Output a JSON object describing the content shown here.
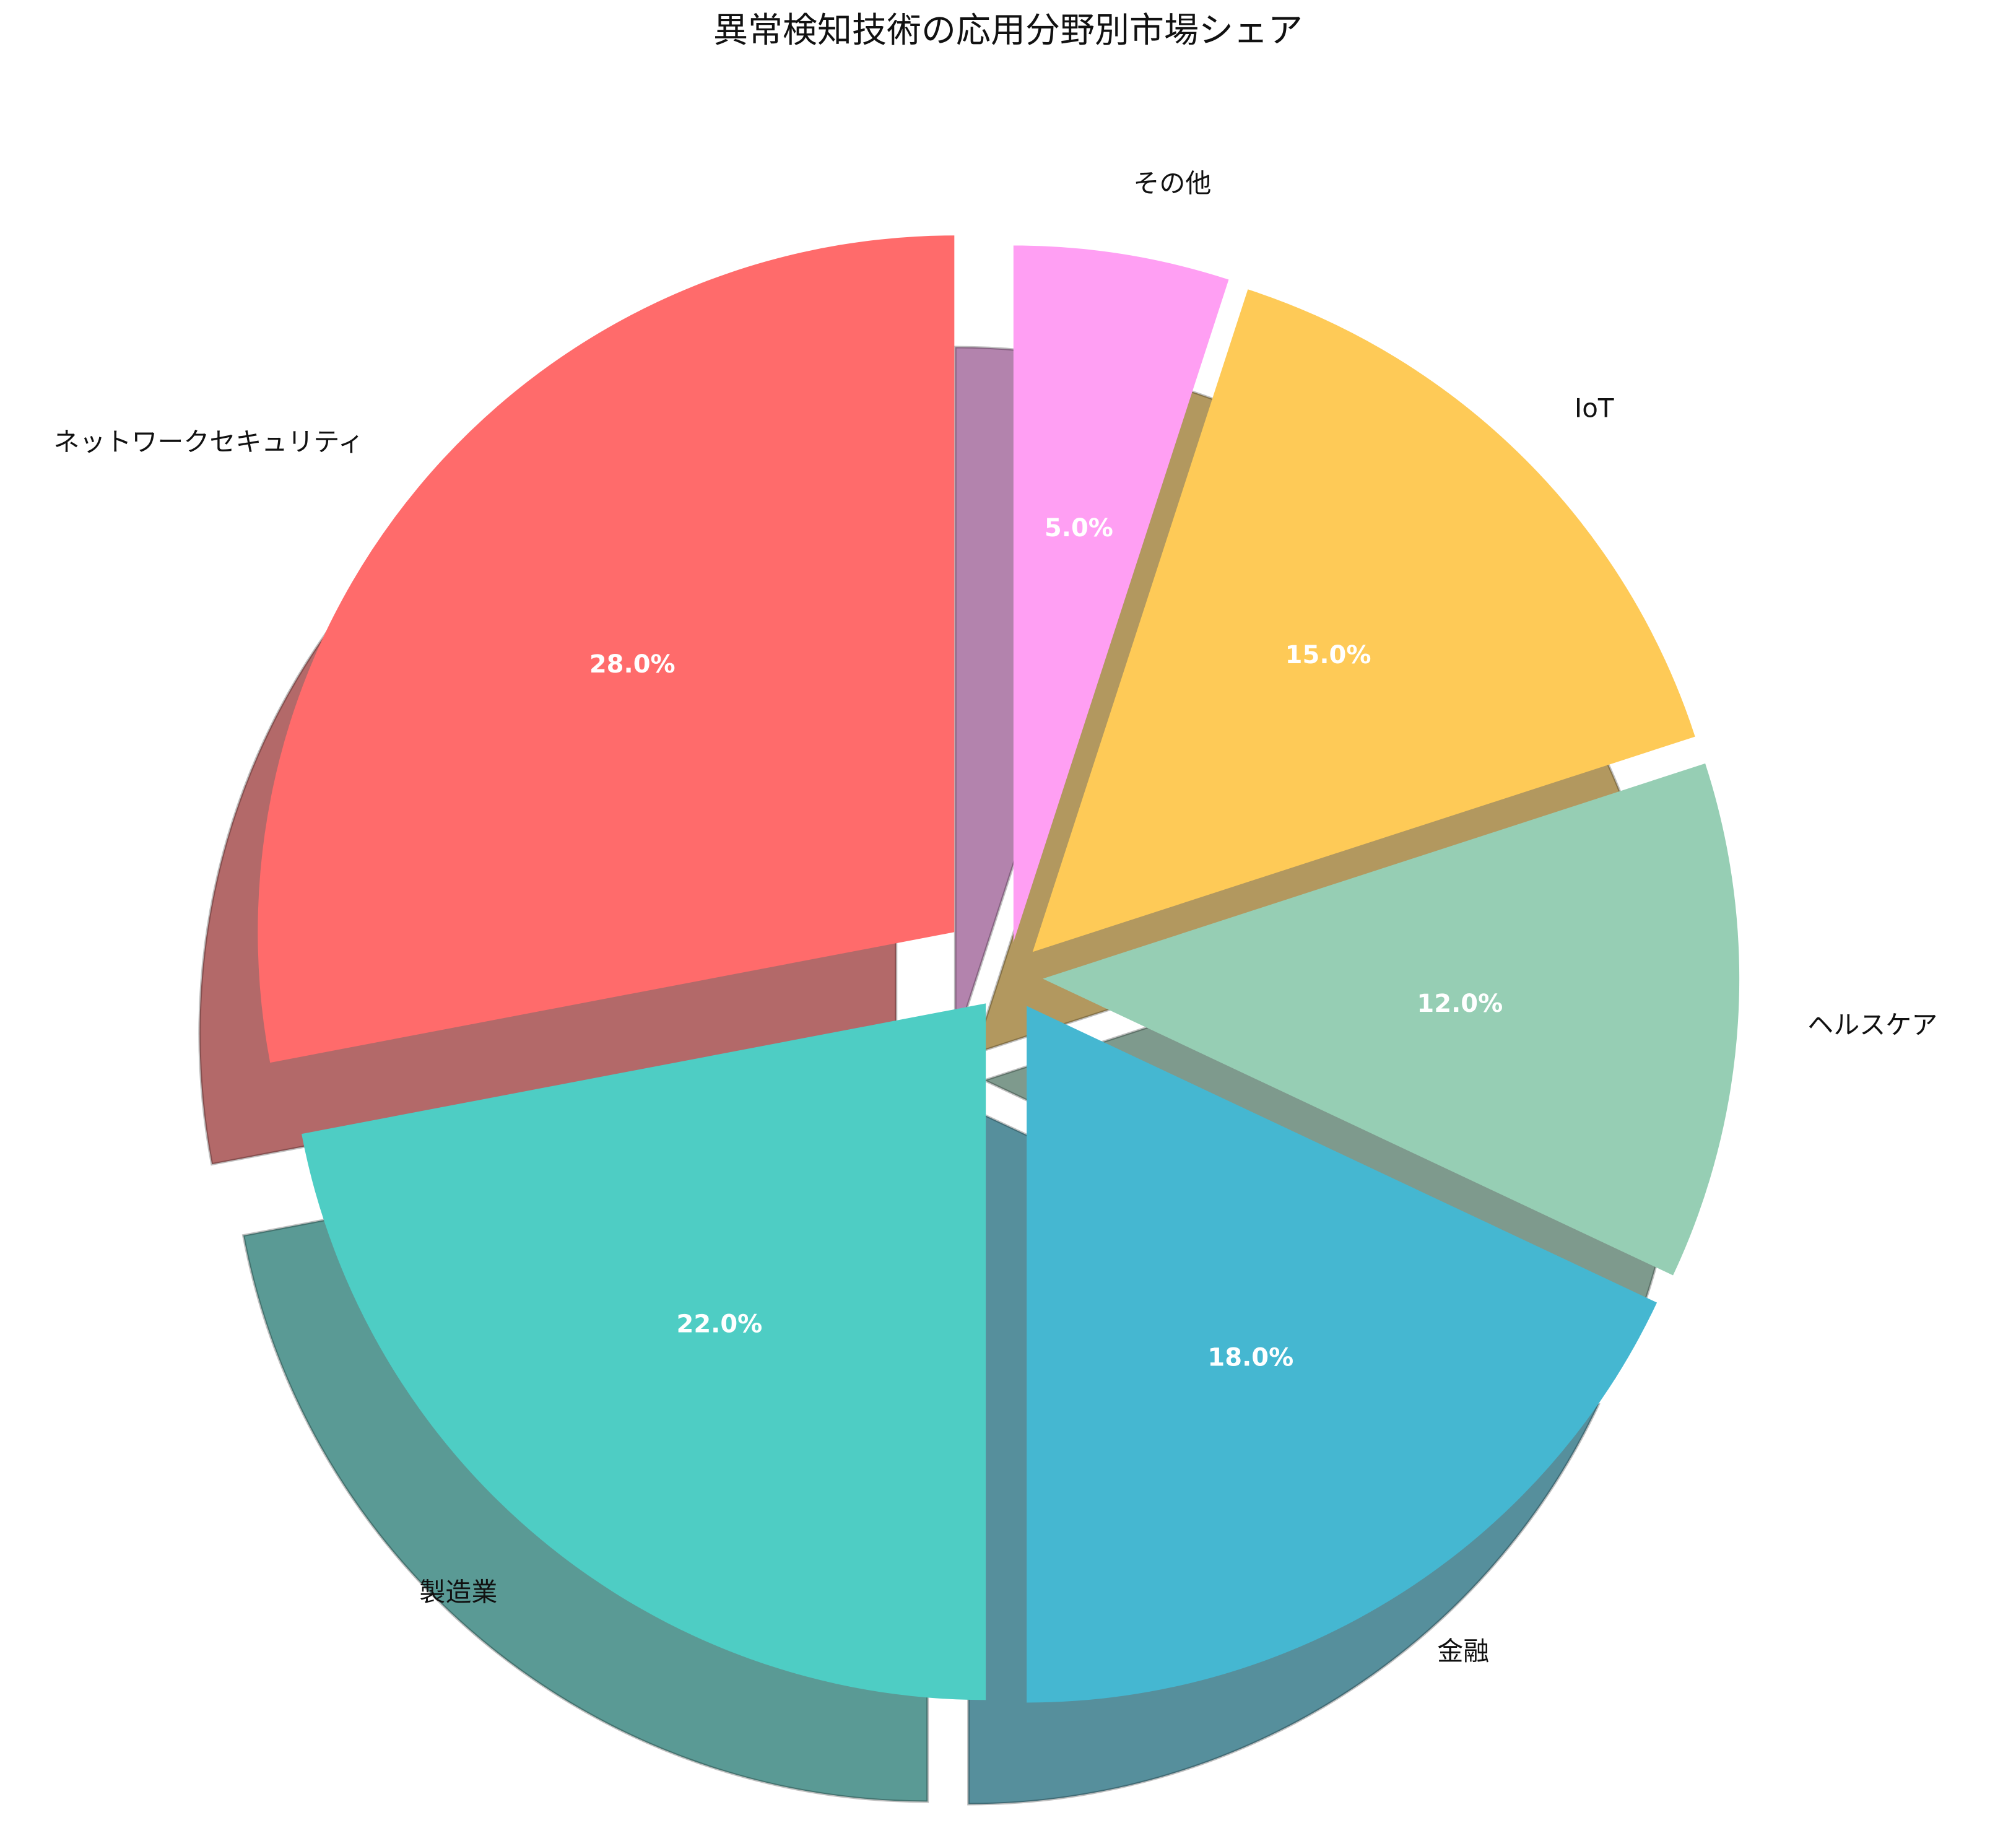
{
  "chart_data": {
    "type": "pie",
    "title": "異常検知技術の応用分野別市場シェア",
    "categories": [
      "ネットワークセキュリティ",
      "製造業",
      "金融",
      "ヘルスケア",
      "IoT",
      "その他"
    ],
    "values": [
      28,
      22,
      18,
      12,
      15,
      5
    ],
    "value_labels": [
      "28.0%",
      "22.0%",
      "18.0%",
      "12.0%",
      "15.0%",
      "5.0%"
    ],
    "unit": "%",
    "colors": [
      "#FF6B6B",
      "#4ECDC4",
      "#45B7D1",
      "#96CEB4",
      "#FECA57",
      "#FF9FF3"
    ],
    "start_angle_deg": 90,
    "direction": "counterclockwise",
    "explode": [
      0.1,
      0.05,
      0.05,
      0.05,
      0.05,
      0.05
    ],
    "shadow": true,
    "legend": "none"
  }
}
